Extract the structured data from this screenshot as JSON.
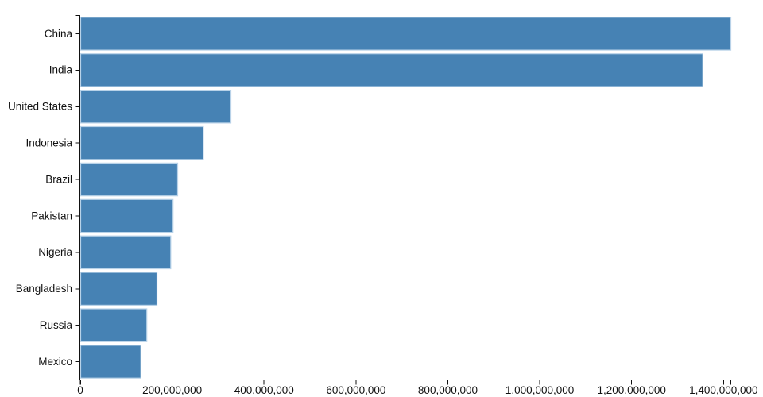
{
  "chart_data": {
    "type": "bar",
    "orientation": "horizontal",
    "title": "",
    "xlabel": "",
    "ylabel": "",
    "categories": [
      "China",
      "India",
      "United States",
      "Indonesia",
      "Brazil",
      "Pakistan",
      "Nigeria",
      "Bangladesh",
      "Russia",
      "Mexico"
    ],
    "values": [
      1415000000,
      1354000000,
      327000000,
      267000000,
      211000000,
      201000000,
      196000000,
      166000000,
      144000000,
      131000000
    ],
    "xlim": [
      0,
      1415000000
    ],
    "x_ticks": [
      0,
      200000000,
      400000000,
      600000000,
      800000000,
      1000000000,
      1200000000,
      1400000000
    ],
    "x_tick_labels": [
      "0",
      "200,000,000",
      "400,000,000",
      "600,000,000",
      "800,000,000",
      "1,000,000,000",
      "1,200,000,000",
      "1,400,000,000"
    ],
    "grid": false,
    "legend": null,
    "colors": {
      "bar_fill": "#4682b4",
      "bar_stroke": "#b8d2e8",
      "axis": "#111111",
      "tick_text": "#111111",
      "background": "#ffffff"
    }
  }
}
